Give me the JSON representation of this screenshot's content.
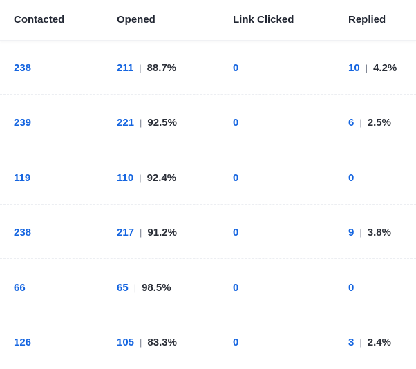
{
  "table": {
    "headers": {
      "contacted": "Contacted",
      "opened": "Opened",
      "link_clicked": "Link Clicked",
      "replied": "Replied"
    },
    "separator": "|",
    "rows": [
      {
        "contacted": "238",
        "opened": "211",
        "opened_pct": "88.7%",
        "link_clicked": "0",
        "replied": "10",
        "replied_pct": "4.2%"
      },
      {
        "contacted": "239",
        "opened": "221",
        "opened_pct": "92.5%",
        "link_clicked": "0",
        "replied": "6",
        "replied_pct": "2.5%"
      },
      {
        "contacted": "119",
        "opened": "110",
        "opened_pct": "92.4%",
        "link_clicked": "0",
        "replied": "0",
        "replied_pct": null
      },
      {
        "contacted": "238",
        "opened": "217",
        "opened_pct": "91.2%",
        "link_clicked": "0",
        "replied": "9",
        "replied_pct": "3.8%"
      },
      {
        "contacted": "66",
        "opened": "65",
        "opened_pct": "98.5%",
        "link_clicked": "0",
        "replied": "0",
        "replied_pct": null
      },
      {
        "contacted": "126",
        "opened": "105",
        "opened_pct": "83.3%",
        "link_clicked": "0",
        "replied": "3",
        "replied_pct": "2.4%"
      }
    ]
  },
  "colors": {
    "link": "#1565e0",
    "text": "#222733",
    "separator": "#7c8291"
  }
}
